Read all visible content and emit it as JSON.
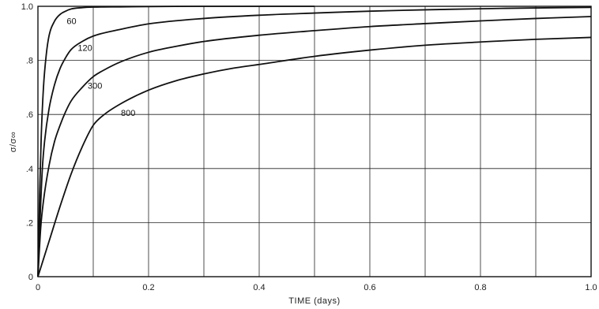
{
  "chart_data": {
    "type": "line",
    "title": "",
    "xlabel": "TIME (days)",
    "ylabel": "σ/σ∞",
    "xlim": [
      0,
      1.0
    ],
    "ylim": [
      0,
      1.0
    ],
    "grid": true,
    "x_ticks": [
      0,
      0.1,
      0.2,
      0.3,
      0.4,
      0.5,
      0.6,
      0.7,
      0.8,
      0.9,
      1.0
    ],
    "x_tick_labels": [
      "0",
      "0.2",
      "0.4",
      "0.6",
      "0.8",
      "1.0"
    ],
    "y_ticks": [
      0,
      0.2,
      0.4,
      0.6,
      0.8,
      1.0
    ],
    "y_tick_labels": [
      "0",
      ".2",
      ".4",
      ".6",
      ".8",
      "1.0"
    ],
    "series": [
      {
        "name": "60",
        "x": [
          0,
          0.003,
          0.006,
          0.01,
          0.015,
          0.02,
          0.03,
          0.04,
          0.05,
          0.06,
          0.08,
          0.1,
          0.15,
          0.2,
          0.3,
          0.4,
          0.5
        ],
        "y": [
          0,
          0.3,
          0.52,
          0.7,
          0.82,
          0.89,
          0.945,
          0.97,
          0.982,
          0.99,
          0.995,
          0.997,
          0.998,
          0.999,
          1.0,
          1.0,
          1.0
        ]
      },
      {
        "name": "120",
        "x": [
          0,
          0.004,
          0.008,
          0.012,
          0.02,
          0.03,
          0.04,
          0.05,
          0.06,
          0.08,
          0.1,
          0.15,
          0.2,
          0.3,
          0.4,
          0.5,
          0.6,
          0.7,
          0.8,
          0.9,
          1.0
        ],
        "y": [
          0,
          0.22,
          0.4,
          0.5,
          0.62,
          0.71,
          0.77,
          0.81,
          0.84,
          0.87,
          0.89,
          0.915,
          0.935,
          0.955,
          0.967,
          0.975,
          0.982,
          0.987,
          0.991,
          0.994,
          0.996
        ]
      },
      {
        "name": "300",
        "x": [
          0,
          0.005,
          0.01,
          0.02,
          0.03,
          0.04,
          0.05,
          0.06,
          0.08,
          0.1,
          0.12,
          0.15,
          0.2,
          0.25,
          0.3,
          0.4,
          0.5,
          0.6,
          0.7,
          0.8,
          0.9,
          1.0
        ],
        "y": [
          0,
          0.18,
          0.28,
          0.41,
          0.5,
          0.56,
          0.61,
          0.65,
          0.7,
          0.74,
          0.765,
          0.795,
          0.83,
          0.852,
          0.87,
          0.893,
          0.91,
          0.925,
          0.936,
          0.946,
          0.955,
          0.962
        ]
      },
      {
        "name": "800",
        "x": [
          0,
          0.02,
          0.04,
          0.06,
          0.08,
          0.1,
          0.12,
          0.15,
          0.2,
          0.25,
          0.3,
          0.35,
          0.4,
          0.5,
          0.6,
          0.7,
          0.8,
          0.9,
          1.0
        ],
        "y": [
          0,
          0.13,
          0.26,
          0.38,
          0.48,
          0.56,
          0.6,
          0.64,
          0.69,
          0.725,
          0.75,
          0.77,
          0.785,
          0.815,
          0.838,
          0.856,
          0.868,
          0.878,
          0.885
        ]
      }
    ]
  }
}
